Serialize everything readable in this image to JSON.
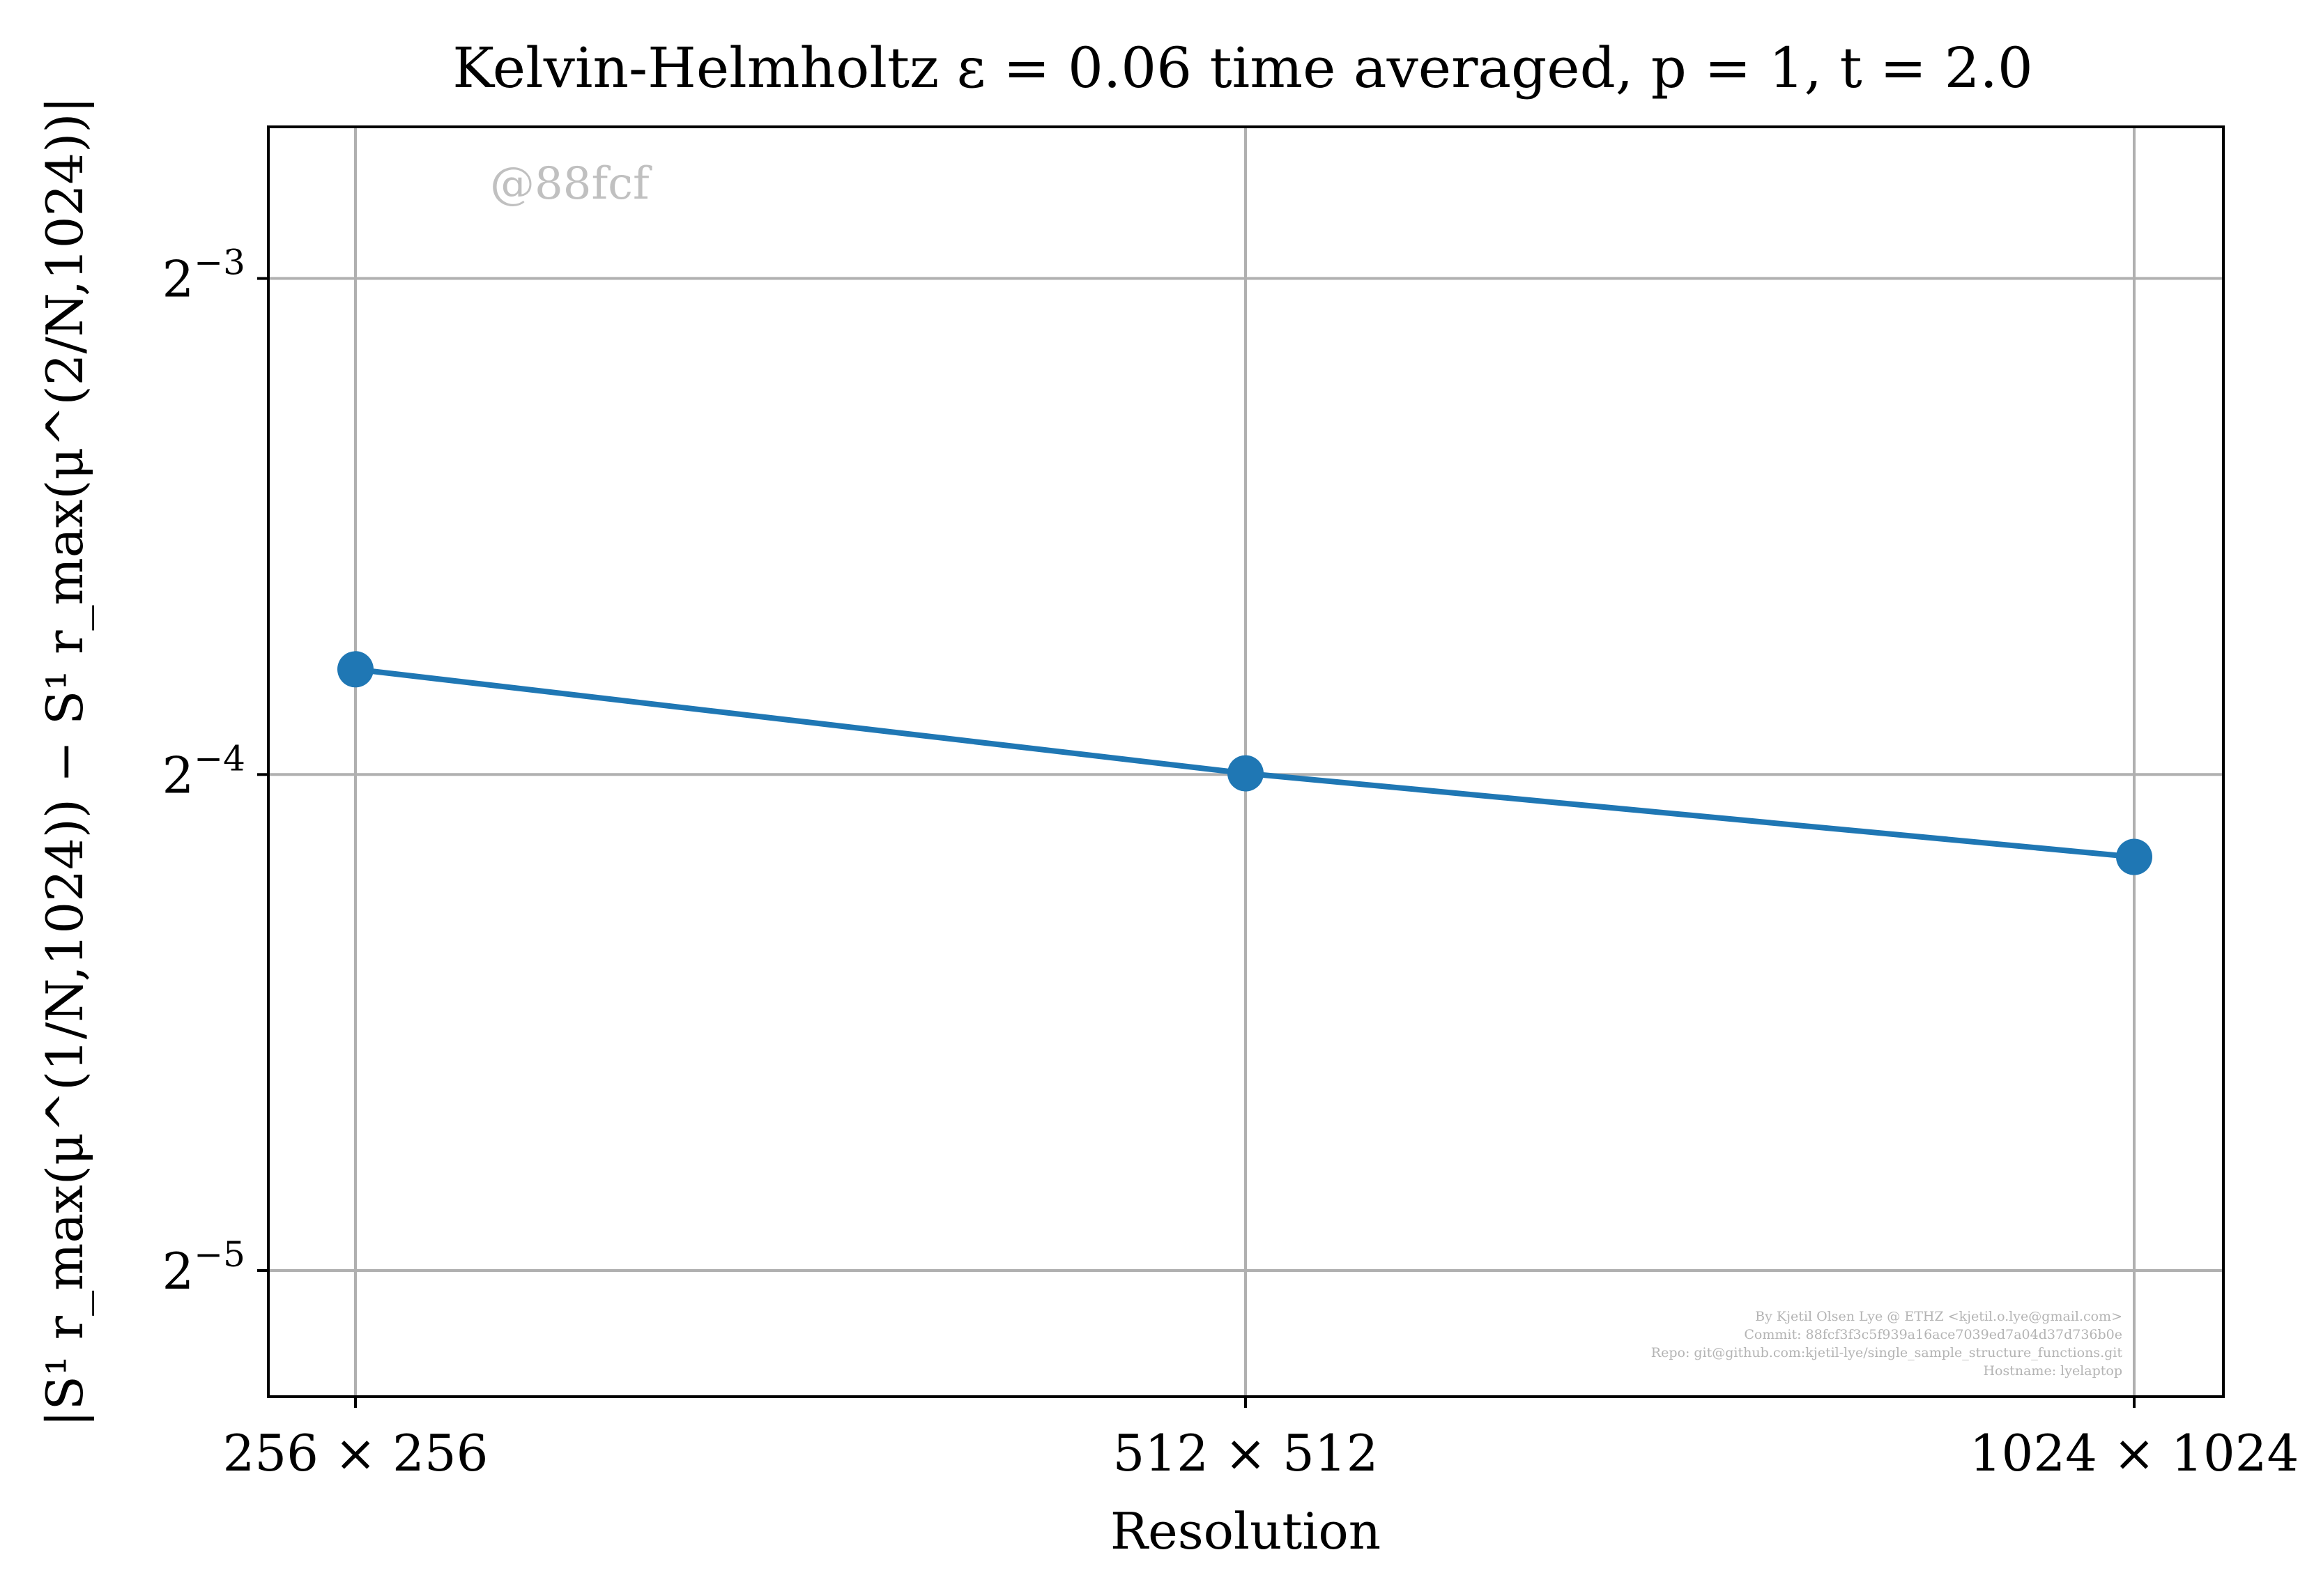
{
  "chart_data": {
    "type": "line",
    "title": "Kelvin-Helmholtz ε = 0.06 time averaged, p = 1, t = 2.0",
    "xlabel": "Resolution",
    "ylabel": "|S¹ r_max(μ^(1/N,1024)) − S¹ r_max(μ^(2/N,1024))|",
    "categories": [
      "256 × 256",
      "512 × 512",
      "1024 × 1024"
    ],
    "y_scale": "log2",
    "ylim": [
      0.0262,
      0.1545
    ],
    "y_ticks": [
      {
        "value": 0.125,
        "base": "2",
        "exp": "−3"
      },
      {
        "value": 0.0625,
        "base": "2",
        "exp": "−4"
      },
      {
        "value": 0.03125,
        "base": "2",
        "exp": "−5"
      }
    ],
    "series": [
      {
        "values": [
          0.0724,
          0.0626,
          0.0557
        ],
        "color": "#1f77b4"
      }
    ],
    "grid": true,
    "watermark": "@88fcf",
    "credits": [
      "By Kjetil Olsen Lye @ ETHZ <kjetil.o.lye@gmail.com>",
      "Commit: 88fcf3f3c5f939a16ace7039ed7a04d37d736b0e",
      "Repo: git@github.com:kjetil-lye/single_sample_structure_functions.git",
      "Hostname: lyelaptop"
    ]
  }
}
